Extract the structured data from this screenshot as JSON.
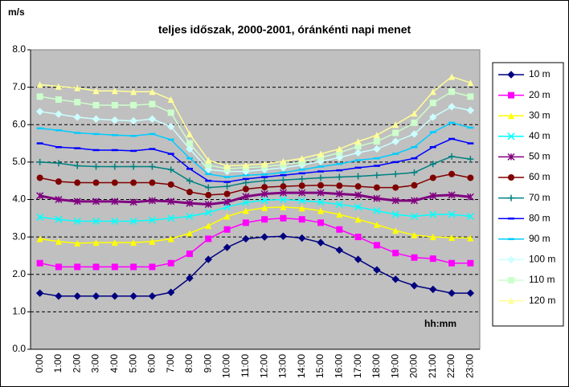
{
  "chart_data": {
    "type": "line",
    "title": "teljes időszak, 2000-2001, óránkénti napi menet",
    "y_label": "m/s",
    "x_label": "hh:mm",
    "categories": [
      "0:00",
      "1:00",
      "2:00",
      "3:00",
      "4:00",
      "5:00",
      "6:00",
      "7:00",
      "8:00",
      "9:00",
      "10:00",
      "11:00",
      "12:00",
      "13:00",
      "14:00",
      "15:00",
      "16:00",
      "17:00",
      "18:00",
      "19:00",
      "20:00",
      "21:00",
      "22:00",
      "23:00"
    ],
    "ylim": [
      0,
      8
    ],
    "yticks": [
      {
        "value": 0,
        "label": "0.0"
      },
      {
        "value": 1,
        "label": "1.0"
      },
      {
        "value": 2,
        "label": "2.0"
      },
      {
        "value": 3,
        "label": "3.0"
      },
      {
        "value": 4,
        "label": "4.0"
      },
      {
        "value": 5,
        "label": "5.0"
      },
      {
        "value": 6,
        "label": "6.0"
      },
      {
        "value": 7,
        "label": "7.0"
      },
      {
        "value": 8,
        "label": "8.0"
      }
    ],
    "grid": true,
    "legend": "right",
    "series": [
      {
        "name": "10 m",
        "color": "#000080",
        "marker": "diamond",
        "values": [
          1.5,
          1.42,
          1.42,
          1.42,
          1.42,
          1.42,
          1.42,
          1.52,
          1.9,
          2.4,
          2.72,
          2.95,
          3.0,
          3.02,
          2.97,
          2.85,
          2.65,
          2.4,
          2.12,
          1.87,
          1.7,
          1.6,
          1.5,
          1.5
        ]
      },
      {
        "name": "20 m",
        "color": "#ff00ff",
        "marker": "square",
        "values": [
          2.3,
          2.2,
          2.2,
          2.2,
          2.2,
          2.2,
          2.2,
          2.3,
          2.55,
          2.95,
          3.2,
          3.38,
          3.47,
          3.5,
          3.47,
          3.38,
          3.2,
          3.0,
          2.78,
          2.57,
          2.45,
          2.42,
          2.3,
          2.3
        ]
      },
      {
        "name": "30 m",
        "color": "#ffff00",
        "marker": "triangle",
        "values": [
          2.95,
          2.88,
          2.83,
          2.85,
          2.85,
          2.85,
          2.88,
          2.95,
          3.1,
          3.3,
          3.55,
          3.7,
          3.78,
          3.8,
          3.77,
          3.7,
          3.6,
          3.47,
          3.33,
          3.17,
          3.05,
          3.0,
          2.98,
          2.97
        ]
      },
      {
        "name": "40 m",
        "color": "#00ffff",
        "marker": "x",
        "values": [
          3.53,
          3.47,
          3.42,
          3.42,
          3.42,
          3.42,
          3.45,
          3.5,
          3.55,
          3.65,
          3.8,
          3.92,
          3.98,
          4.0,
          3.97,
          3.93,
          3.87,
          3.8,
          3.7,
          3.6,
          3.55,
          3.6,
          3.6,
          3.55
        ]
      },
      {
        "name": "50 m",
        "color": "#800080",
        "marker": "star",
        "values": [
          4.1,
          4.0,
          3.95,
          3.95,
          3.95,
          3.93,
          3.97,
          3.95,
          3.9,
          3.87,
          3.93,
          4.08,
          4.15,
          4.18,
          4.18,
          4.18,
          4.15,
          4.12,
          4.03,
          3.97,
          3.97,
          4.1,
          4.12,
          4.07
        ]
      },
      {
        "name": "60 m",
        "color": "#800000",
        "marker": "circle",
        "values": [
          4.58,
          4.48,
          4.45,
          4.45,
          4.45,
          4.45,
          4.45,
          4.4,
          4.2,
          4.12,
          4.15,
          4.28,
          4.33,
          4.35,
          4.37,
          4.38,
          4.37,
          4.35,
          4.32,
          4.32,
          4.38,
          4.58,
          4.68,
          4.58
        ]
      },
      {
        "name": "70 m",
        "color": "#008080",
        "marker": "plus",
        "values": [
          5.0,
          4.97,
          4.9,
          4.88,
          4.88,
          4.88,
          4.88,
          4.8,
          4.5,
          4.32,
          4.35,
          4.45,
          4.5,
          4.52,
          4.55,
          4.58,
          4.6,
          4.62,
          4.65,
          4.68,
          4.72,
          4.95,
          5.15,
          5.08
        ]
      },
      {
        "name": "80 m",
        "color": "#0000ff",
        "marker": "dash",
        "values": [
          5.5,
          5.4,
          5.37,
          5.32,
          5.32,
          5.3,
          5.35,
          5.22,
          4.82,
          4.5,
          4.47,
          4.55,
          4.6,
          4.65,
          4.7,
          4.75,
          4.78,
          4.85,
          4.9,
          5.0,
          5.1,
          5.4,
          5.62,
          5.5
        ]
      },
      {
        "name": "90 m",
        "color": "#00ccff",
        "marker": "dash",
        "values": [
          5.9,
          5.85,
          5.78,
          5.75,
          5.72,
          5.7,
          5.75,
          5.6,
          5.1,
          4.68,
          4.6,
          4.65,
          4.67,
          4.72,
          4.8,
          4.88,
          4.95,
          5.05,
          5.1,
          5.22,
          5.4,
          5.8,
          6.05,
          5.92
        ]
      },
      {
        "name": "100 m",
        "color": "#ccffff",
        "marker": "diamond",
        "values": [
          6.35,
          6.28,
          6.2,
          6.15,
          6.12,
          6.1,
          6.15,
          5.95,
          5.35,
          4.8,
          4.75,
          4.75,
          4.8,
          4.85,
          4.92,
          5.02,
          5.12,
          5.25,
          5.35,
          5.55,
          5.75,
          6.2,
          6.48,
          6.38
        ]
      },
      {
        "name": "110 m",
        "color": "#ccffcc",
        "marker": "square",
        "values": [
          6.75,
          6.67,
          6.6,
          6.52,
          6.52,
          6.52,
          6.55,
          6.32,
          5.5,
          4.92,
          4.82,
          4.85,
          4.88,
          4.93,
          5.0,
          5.12,
          5.25,
          5.42,
          5.55,
          5.78,
          6.05,
          6.58,
          6.88,
          6.75
        ]
      },
      {
        "name": "120 m",
        "color": "#ffff99",
        "marker": "triangle",
        "values": [
          7.07,
          7.02,
          6.98,
          6.9,
          6.9,
          6.88,
          6.88,
          6.67,
          5.75,
          5.05,
          4.9,
          4.92,
          4.95,
          5.02,
          5.1,
          5.22,
          5.35,
          5.55,
          5.72,
          6.0,
          6.3,
          6.88,
          7.28,
          7.12
        ]
      }
    ]
  }
}
